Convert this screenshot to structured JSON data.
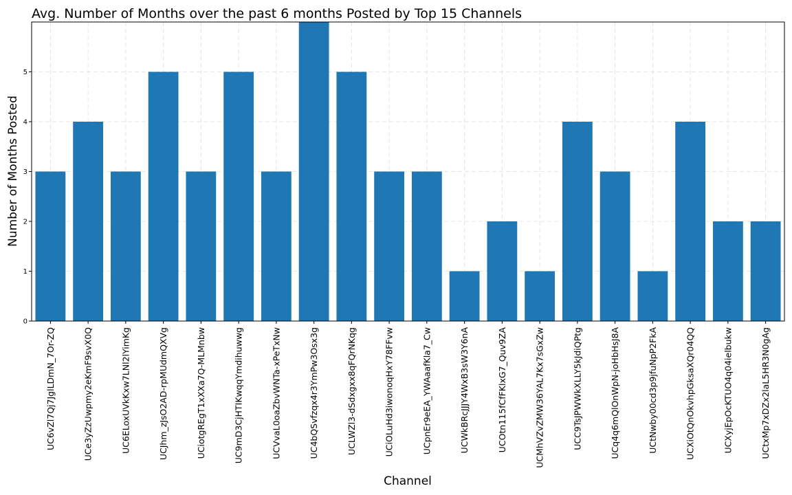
{
  "chart_data": {
    "type": "bar",
    "title": "Avg. Number of Months over the past 6 months Posted by Top 15 Channels",
    "xlabel": "Channel",
    "ylabel": "Number of Months Posted",
    "categories": [
      "UC6vZl7Qj7JglLDmN_7Or-ZQ",
      "UCe3yZzUwpmy2eKmF9svX0Q",
      "UC6ELoxUVkKxw7LNl2lYimKg",
      "UCJhm_zJsO2AD-rpMUdmQXVg",
      "UCiotgREgT1xXXa7Q-MLMnbw",
      "UC9mD3CjHTIKwqqYmdihuwwg",
      "UCVvaL0oaZbvWNTa-xPeTxNw",
      "UC4bQSvfzqx4r3YmPw3Osx3g",
      "UCLWZl3-dSdxgxx8qFQrNKqg",
      "UCiOLuHd3iwonoqHxY78FFvw",
      "UCpnEr9eEA_YWAaafKla7_Cw",
      "UCWkBRcJJJY4WxB3sW3Y6nA",
      "UCOtn115fCfFKlxG7_Quv9ZA",
      "UCMhVZvZMW36YAL7Kx7sGxZw",
      "UCC9TsJPWWkXLLY5kJdiQPtg",
      "UCq4q6mQlOnWpN-joHbHsJ8A",
      "UCtNwby00cd3p9jfuNpP2FkA",
      "UCXiOtQnOkvhpGksaXQr04QQ",
      "UCXyjEpOcKTUO4q04ielbukw",
      "UCtxMp7xDZx2laL5HR3N0gAg"
    ],
    "values": [
      3,
      4,
      3,
      5,
      3,
      5,
      3,
      6,
      5,
      3,
      3,
      1,
      2,
      1,
      4,
      3,
      1,
      4,
      2,
      2
    ],
    "ylim": [
      0,
      6
    ],
    "yticks": [
      "0",
      "1",
      "2",
      "3",
      "4",
      "5"
    ],
    "grid": true,
    "bar_color": "#1f77b4"
  }
}
